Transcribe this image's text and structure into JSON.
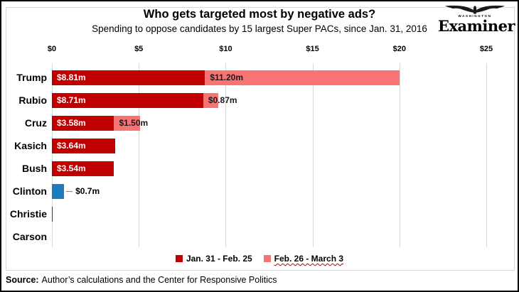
{
  "header": {
    "title": "Who gets targeted most by negative ads?",
    "subtitle": "Spending to oppose candidates by 15 largest Super PACs, since Jan. 31, 2016"
  },
  "logo": {
    "masthead_top": "WASHINGTON",
    "masthead": "Examiner"
  },
  "colors": {
    "period1_dark_red": "#C00000",
    "period2_pink": "#F87373",
    "clinton_blue": "#1F7BC0",
    "gridline": "#D9D9D9",
    "frame_border": "#000000",
    "leader_line": "#808080"
  },
  "chart_data": {
    "type": "bar",
    "orientation": "horizontal",
    "stacked": true,
    "grid": true,
    "legend_position": "bottom",
    "title": "Who gets targeted most by negative ads?",
    "subtitle": "Spending to oppose candidates by 15 largest Super PACs, since Jan. 31, 2016",
    "xlabel": "",
    "ylabel": "",
    "x_max": 25,
    "x_ticks": [
      "$0",
      "$5",
      "$10",
      "$15",
      "$20",
      "$25"
    ],
    "categories": [
      "Trump",
      "Rubio",
      "Cruz",
      "Kasich",
      "Bush",
      "Clinton",
      "Christie",
      "Carson"
    ],
    "series": [
      {
        "name": "Jan. 31 - Feb. 25",
        "color": "#C00000",
        "values": [
          8.81,
          8.71,
          3.58,
          3.64,
          3.54,
          0.7,
          0.05,
          0
        ]
      },
      {
        "name": "Feb. 26 - March 3",
        "color": "#F87373",
        "values": [
          11.2,
          0.87,
          1.5,
          0,
          0,
          0,
          0,
          0
        ]
      }
    ],
    "rows": [
      {
        "label": "Trump",
        "segments": [
          {
            "value": 8.81,
            "label": "$8.81m",
            "color": "#C00000",
            "label_color": "#FFFFFF"
          },
          {
            "value": 11.2,
            "label": "$11.20m",
            "color": "#F87373",
            "label_color": "#1A1A1A"
          }
        ]
      },
      {
        "label": "Rubio",
        "segments": [
          {
            "value": 8.71,
            "label": "$8.71m",
            "color": "#C00000",
            "label_color": "#FFFFFF"
          },
          {
            "value": 0.87,
            "label": "$0.87m",
            "color": "#F87373",
            "label_color": "#1A1A1A"
          }
        ]
      },
      {
        "label": "Cruz",
        "segments": [
          {
            "value": 3.58,
            "label": "$3.58m",
            "color": "#C00000",
            "label_color": "#FFFFFF"
          },
          {
            "value": 1.5,
            "label": "$1.50m",
            "color": "#F87373",
            "label_color": "#1A1A1A"
          }
        ]
      },
      {
        "label": "Kasich",
        "segments": [
          {
            "value": 3.64,
            "label": "$3.64m",
            "color": "#C00000",
            "label_color": "#FFFFFF"
          }
        ]
      },
      {
        "label": "Bush",
        "segments": [
          {
            "value": 3.54,
            "label": "$3.54m",
            "color": "#C00000",
            "label_color": "#FFFFFF"
          }
        ]
      },
      {
        "label": "Clinton",
        "segments": [
          {
            "value": 0.7,
            "label": "$0.7m",
            "color": "#1F7BC0",
            "label_outside": true,
            "label_color": "#1A1A1A"
          }
        ]
      },
      {
        "label": "Christie",
        "segments": [
          {
            "value": 0.05,
            "color": "#C00000"
          }
        ]
      },
      {
        "label": "Carson",
        "segments": []
      }
    ],
    "legend": [
      {
        "label": "Jan. 31 - Feb. 25",
        "color": "#C00000",
        "misspelled_underline": false
      },
      {
        "label": "Feb. 26 - March 3",
        "color": "#F87373",
        "misspelled_underline": true
      }
    ]
  },
  "footer": {
    "source_label": "Source:",
    "source_text": "Author’s calculations and the Center for Responsive Politics"
  }
}
